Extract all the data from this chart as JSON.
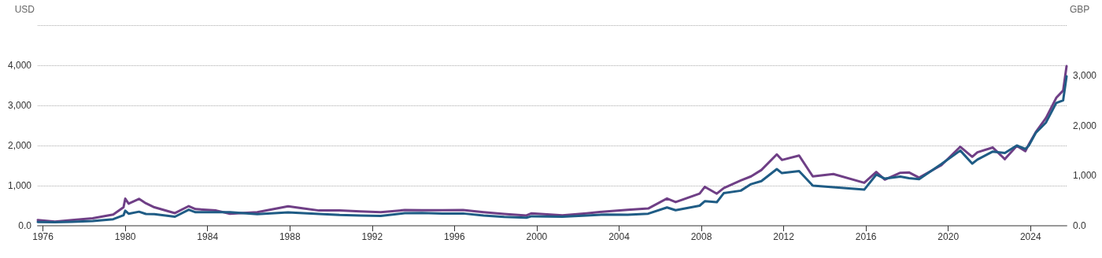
{
  "chart_data": {
    "type": "line",
    "ylabel": "USD",
    "y2label": "GBP",
    "x": [
      "1975-10",
      "1976-08",
      "1977-06",
      "1978-06",
      "1979-06",
      "1979-12",
      "1980-01",
      "1980-03",
      "1980-09",
      "1981-01",
      "1981-06",
      "1982-06",
      "1983-02",
      "1983-06",
      "1984-06",
      "1985-02",
      "1986-06",
      "1987-12",
      "1988-09",
      "1989-06",
      "1990-06",
      "1991-06",
      "1992-06",
      "1993-08",
      "1994-06",
      "1995-06",
      "1996-06",
      "1997-06",
      "1998-06",
      "1999-07",
      "1999-10",
      "2001-04",
      "2002-06",
      "2003-06",
      "2004-06",
      "2005-06",
      "2006-05",
      "2006-10",
      "2007-12",
      "2008-03",
      "2008-10",
      "2009-02",
      "2009-12",
      "2010-06",
      "2010-12",
      "2011-09",
      "2011-12",
      "2012-10",
      "2013-06",
      "2014-06",
      "2015-12",
      "2016-07",
      "2016-12",
      "2017-09",
      "2018-02",
      "2018-08",
      "2019-09",
      "2020-08",
      "2021-03",
      "2021-06",
      "2022-03",
      "2022-10",
      "2023-05",
      "2023-10",
      "2023-12",
      "2024-04",
      "2024-10",
      "2025-04",
      "2025-08",
      "2025-10"
    ],
    "series": [
      {
        "color": "#6f3f86",
        "values": [
          142,
          105,
          140,
          185,
          280,
          460,
          675,
          550,
          670,
          560,
          460,
          315,
          490,
          415,
          380,
          300,
          340,
          485,
          430,
          380,
          380,
          360,
          340,
          390,
          385,
          385,
          390,
          340,
          295,
          255,
          310,
          260,
          310,
          360,
          395,
          430,
          680,
          590,
          800,
          970,
          800,
          940,
          1130,
          1230,
          1390,
          1780,
          1640,
          1750,
          1230,
          1290,
          1070,
          1340,
          1150,
          1320,
          1330,
          1200,
          1510,
          1970,
          1720,
          1830,
          1950,
          1660,
          1990,
          1860,
          2030,
          2330,
          2690,
          3190,
          3370,
          3980
        ]
      },
      {
        "color": "#1f5c85",
        "axis": "y2",
        "values": [
          75,
          70,
          80,
          95,
          130,
          210,
          300,
          240,
          280,
          235,
          230,
          180,
          320,
          270,
          270,
          270,
          230,
          265,
          250,
          235,
          215,
          205,
          195,
          250,
          255,
          245,
          245,
          205,
          178,
          160,
          190,
          180,
          205,
          225,
          220,
          240,
          365,
          310,
          400,
          490,
          470,
          650,
          700,
          830,
          890,
          1130,
          1050,
          1090,
          800,
          770,
          720,
          1020,
          940,
          980,
          950,
          930,
          1230,
          1500,
          1240,
          1320,
          1480,
          1450,
          1600,
          1530,
          1600,
          1850,
          2060,
          2450,
          2500,
          2980
        ]
      }
    ],
    "xlim": [
      "1975-10",
      "2025-10"
    ],
    "xticks": [
      "1976",
      "1980",
      "1984",
      "1988",
      "1992",
      "1996",
      "2000",
      "2004",
      "2008",
      "2012",
      "2016",
      "2020",
      "2024"
    ],
    "ylim": [
      0,
      5000
    ],
    "yticks": [
      {
        "value": 0,
        "label": "0.0"
      },
      {
        "value": 1000,
        "label": "1,000"
      },
      {
        "value": 2000,
        "label": "2,000"
      },
      {
        "value": 3000,
        "label": "3,000"
      },
      {
        "value": 4000,
        "label": "4,000"
      },
      {
        "value": 5000,
        "label": null
      }
    ],
    "y2lim": [
      0,
      4000
    ],
    "y2ticks": [
      {
        "value": 0,
        "label": "0.0"
      },
      {
        "value": 1000,
        "label": "1,000"
      },
      {
        "value": 2000,
        "label": "2,000"
      },
      {
        "value": 3000,
        "label": "3,000"
      },
      {
        "value": 4000,
        "label": null
      }
    ],
    "grid": "y",
    "legend": false,
    "marker": "none",
    "line_style": "solid"
  }
}
